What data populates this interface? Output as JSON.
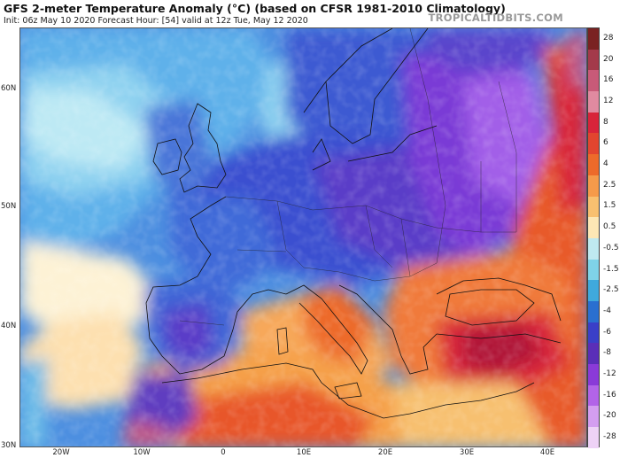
{
  "header": {
    "title": "GFS 2-meter Temperature Anomaly (°C) (based on CFSR 1981-2010 Climatology)",
    "subtitle": "Init: 06z May 10 2020   Forecast Hour: [54]   valid at 12z Tue, May 12 2020",
    "brand": "TROPICALTIDBITS.COM"
  },
  "map": {
    "lat_labels": [
      "60N",
      "50N",
      "40N",
      "30N"
    ],
    "lon_labels": [
      "20W",
      "10W",
      "0",
      "10E",
      "20E",
      "30E",
      "40E"
    ]
  },
  "colorbar": {
    "labels": [
      "28",
      "20",
      "16",
      "12",
      "8",
      "6",
      "4",
      "2.5",
      "1.5",
      "0.5",
      "-0.5",
      "-1.5",
      "-2.5",
      "-4",
      "-6",
      "-8",
      "-12",
      "-16",
      "-20",
      "-28"
    ],
    "colors": [
      "#7a2222",
      "#a33a4a",
      "#c85a78",
      "#e08aa0",
      "#d8243a",
      "#e2452f",
      "#ed6a2a",
      "#f59a4a",
      "#f8c070",
      "#fde7b5",
      "#bfe9f0",
      "#7fd3e8",
      "#3fa9dc",
      "#2a6fd0",
      "#3a3fc8",
      "#5a2eb8",
      "#8a3ad8",
      "#b264e8",
      "#d49ef0",
      "#eed2f6"
    ]
  }
}
